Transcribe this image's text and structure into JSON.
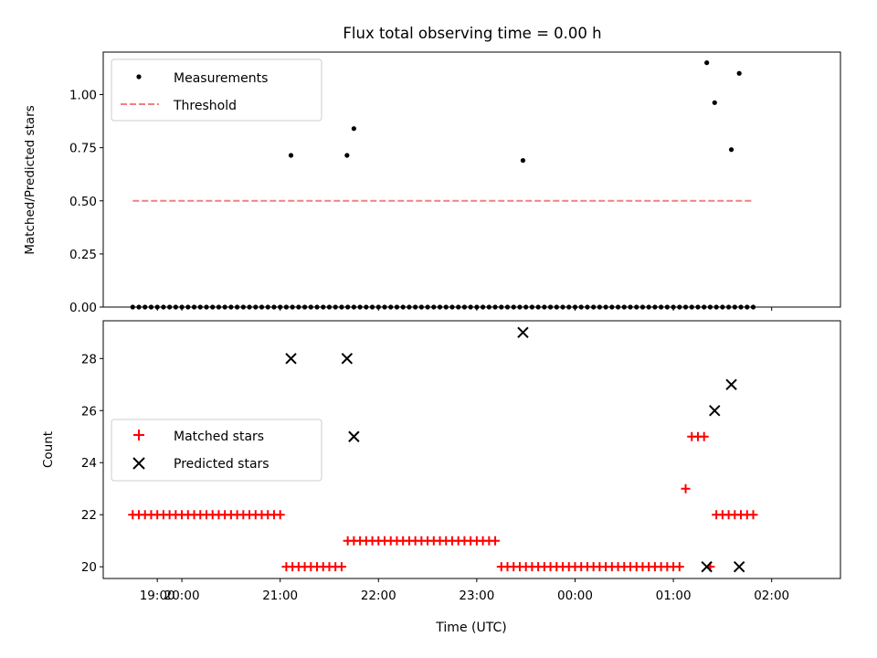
{
  "chart_data": [
    {
      "type": "scatter",
      "title": "Flux total observing time = 0.00 h",
      "xlabel": "",
      "ylabel": "Matched/Predicted stars",
      "xlim": [
        -0.55,
        6.95
      ],
      "ylim": [
        0,
        1.2
      ],
      "yticks": [
        0.0,
        0.25,
        0.5,
        0.75,
        1.0
      ],
      "ytick_labels": [
        "0.00",
        "0.25",
        "0.50",
        "0.75",
        "1.00"
      ],
      "xticks": [
        0.25,
        1.25,
        2.25,
        3.25,
        4.25,
        5.25,
        6.25
      ],
      "xtick_labels_shown": false,
      "legend": {
        "placement": "upper-left",
        "entries": [
          "Measurements",
          "Threshold"
        ]
      },
      "series": [
        {
          "name": "Measurements",
          "marker": "dot",
          "color": "#000000",
          "x": [
            -0.25,
            -0.1875,
            -0.125,
            -0.0625,
            0.0,
            0.0625,
            0.125,
            0.1875,
            0.25,
            0.3125,
            0.375,
            0.4375,
            0.5,
            0.5625,
            0.625,
            0.6875,
            0.75,
            0.8125,
            0.875,
            0.9375,
            1.0,
            1.0625,
            1.125,
            1.1875,
            1.25,
            1.3125,
            1.375,
            1.4375,
            1.5,
            1.5625,
            1.625,
            1.6875,
            1.75,
            1.8125,
            1.875,
            1.9375,
            2.0,
            2.0625,
            2.125,
            2.1875,
            2.25,
            2.3125,
            2.375,
            2.4375,
            2.5,
            2.5625,
            2.625,
            2.6875,
            2.75,
            2.8125,
            2.875,
            2.9375,
            3.0,
            3.0625,
            3.125,
            3.1875,
            3.25,
            3.3125,
            3.375,
            3.4375,
            3.5,
            3.5625,
            3.625,
            3.6875,
            3.75,
            3.8125,
            3.875,
            3.9375,
            4.0,
            4.0625,
            4.125,
            4.1875,
            4.25,
            4.3125,
            4.375,
            4.4375,
            4.5,
            4.5625,
            4.625,
            4.6875,
            4.75,
            4.8125,
            4.875,
            4.9375,
            5.0,
            5.0625,
            5.125,
            5.1875,
            5.25,
            5.3125,
            5.375,
            5.4375,
            5.5,
            5.5625,
            5.625,
            5.6875,
            5.75,
            5.8125,
            5.875,
            5.9375,
            6.0,
            6.0625
          ],
          "y": [
            0,
            0,
            0,
            0,
            0,
            0,
            0,
            0,
            0,
            0,
            0,
            0,
            0,
            0,
            0,
            0,
            0,
            0,
            0,
            0,
            0,
            0,
            0,
            0,
            0,
            0,
            0,
            0,
            0,
            0,
            0,
            0,
            0,
            0,
            0,
            0,
            0,
            0,
            0,
            0,
            0,
            0,
            0,
            0,
            0,
            0,
            0,
            0,
            0,
            0,
            0,
            0,
            0,
            0,
            0,
            0,
            0,
            0,
            0,
            0,
            0,
            0,
            0,
            0,
            0,
            0,
            0,
            0,
            0,
            0,
            0,
            0,
            0,
            0,
            0,
            0,
            0,
            0,
            0,
            0,
            0,
            0,
            0,
            0,
            0,
            0,
            0,
            0,
            0,
            0,
            0,
            0,
            0,
            0,
            0,
            0,
            0,
            0,
            0,
            0,
            0,
            0
          ],
          "x_extra": [
            1.36,
            1.93,
            2.0,
            3.72,
            5.59,
            5.67,
            5.84,
            5.92
          ],
          "y_extra": [
            0.714,
            0.714,
            0.84,
            0.69,
            1.15,
            0.962,
            0.741,
            1.1
          ]
        },
        {
          "name": "Threshold",
          "style": "dashed",
          "color": "#f08080",
          "x": [
            -0.25,
            6.05
          ],
          "y": [
            0.5,
            0.5
          ]
        }
      ]
    },
    {
      "type": "scatter",
      "title": "",
      "xlabel": "Time (UTC)",
      "ylabel": "Count",
      "xlim": [
        -0.55,
        6.95
      ],
      "ylim": [
        19.55,
        29.45
      ],
      "yticks": [
        20,
        22,
        24,
        26,
        28
      ],
      "ytick_labels": [
        "20",
        "22",
        "24",
        "26",
        "28"
      ],
      "xticks": [
        0.25,
        1.25,
        2.25,
        3.25,
        4.25,
        5.25,
        6.25
      ],
      "xtick_labels": [
        "19:00",
        "20:00",
        "21:00",
        "22:00",
        "23:00",
        "00:00",
        "01:00",
        "02:00"
      ],
      "legend": {
        "placement": "center-left",
        "entries": [
          "Matched stars",
          "Predicted stars"
        ]
      },
      "series": [
        {
          "name": "Matched stars",
          "marker": "plus",
          "color": "#ff0000",
          "x": [
            -0.25,
            -0.1875,
            -0.125,
            -0.0625,
            0.0,
            0.0625,
            0.125,
            0.1875,
            0.25,
            0.3125,
            0.375,
            0.4375,
            0.5,
            0.5625,
            0.625,
            0.6875,
            0.75,
            0.8125,
            0.875,
            0.9375,
            1.0,
            1.0625,
            1.125,
            1.1875,
            1.25,
            1.3125,
            1.375,
            1.4375,
            1.5,
            1.5625,
            1.625,
            1.6875,
            1.75,
            1.8125,
            1.875,
            1.9375,
            2.0,
            2.0625,
            2.125,
            2.1875,
            2.25,
            2.3125,
            2.375,
            2.4375,
            2.5,
            2.5625,
            2.625,
            2.6875,
            2.75,
            2.8125,
            2.875,
            2.9375,
            3.0,
            3.0625,
            3.125,
            3.1875,
            3.25,
            3.3125,
            3.375,
            3.4375,
            3.5,
            3.5625,
            3.625,
            3.6875,
            3.75,
            3.8125,
            3.875,
            3.9375,
            4.0,
            4.0625,
            4.125,
            4.1875,
            4.25,
            4.3125,
            4.375,
            4.4375,
            4.5,
            4.5625,
            4.625,
            4.6875,
            4.75,
            4.8125,
            4.875,
            4.9375,
            5.0,
            5.0625,
            5.125,
            5.1875,
            5.25,
            5.3125,
            5.375,
            5.4375,
            5.5,
            5.5625,
            5.625,
            5.6875,
            5.75,
            5.8125,
            5.875,
            5.9375,
            6.0,
            6.0625
          ],
          "y": [
            22,
            22,
            22,
            22,
            22,
            22,
            22,
            22,
            22,
            22,
            22,
            22,
            22,
            22,
            22,
            22,
            22,
            22,
            22,
            22,
            22,
            22,
            22,
            22,
            22,
            20,
            20,
            20,
            20,
            20,
            20,
            20,
            20,
            20,
            20,
            21,
            21,
            21,
            21,
            21,
            21,
            21,
            21,
            21,
            21,
            21,
            21,
            21,
            21,
            21,
            21,
            21,
            21,
            21,
            21,
            21,
            21,
            21,
            21,
            21,
            20,
            20,
            20,
            20,
            20,
            20,
            20,
            20,
            20,
            20,
            20,
            20,
            20,
            20,
            20,
            20,
            20,
            20,
            20,
            20,
            20,
            20,
            20,
            20,
            20,
            20,
            20,
            20,
            20,
            20,
            23,
            25,
            25,
            25,
            20,
            22,
            22,
            22,
            22,
            22,
            22,
            22
          ]
        },
        {
          "name": "Predicted stars",
          "marker": "x",
          "color": "#000000",
          "x": [
            1.36,
            1.93,
            2.0,
            3.72,
            5.59,
            5.67,
            5.84,
            5.92
          ],
          "y": [
            28,
            28,
            25,
            29,
            20,
            26,
            27,
            20
          ]
        }
      ]
    }
  ]
}
